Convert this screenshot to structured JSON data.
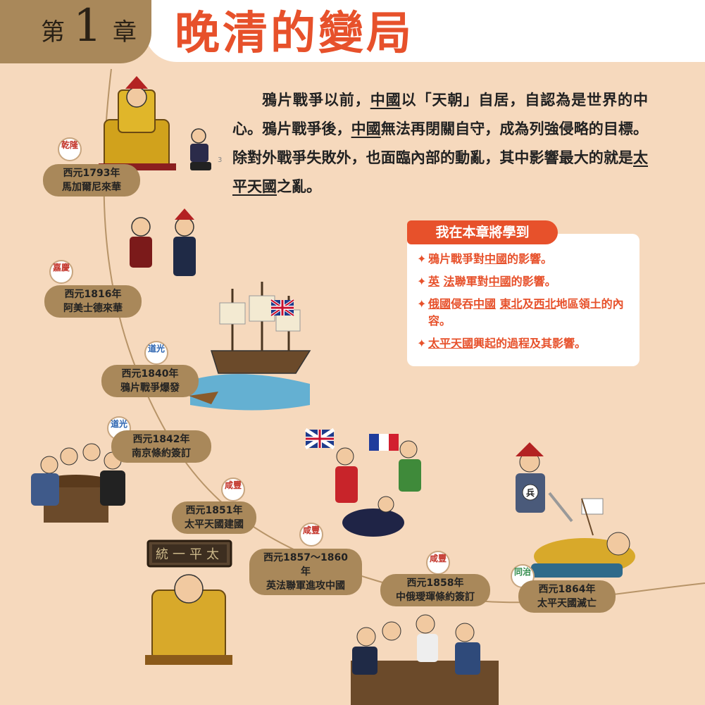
{
  "chapter": {
    "word_before": "第",
    "number": "1",
    "word_after": "章",
    "title": "晚清的變局"
  },
  "intro": {
    "segments": [
      {
        "t": "鴉片戰爭以前，",
        "u": false
      },
      {
        "t": "中國",
        "u": true
      },
      {
        "t": "以「天朝」自居，自認為是世界的中心。鴉片戰爭後，",
        "u": false
      },
      {
        "t": "中國",
        "u": true
      },
      {
        "t": "無法再閉關自守，成為列強侵略的目標。除對外戰爭失敗外，也面臨內部的動亂，其中影響最大的就是",
        "u": false
      },
      {
        "t": "太平天國",
        "u": true
      },
      {
        "t": "之亂。",
        "u": false
      }
    ],
    "footnote_mark": "3"
  },
  "learn": {
    "header": "我在本章將學到",
    "items": [
      {
        "segments": [
          {
            "t": "鴉片戰爭對",
            "u": false
          },
          {
            "t": "中國",
            "u": true
          },
          {
            "t": "的影響。",
            "u": false
          }
        ]
      },
      {
        "segments": [
          {
            "t": "英",
            "u": true
          },
          {
            "t": " ",
            "u": false
          },
          {
            "t": "法",
            "u": true
          },
          {
            "t": "聯軍對",
            "u": false
          },
          {
            "t": "中國",
            "u": true
          },
          {
            "t": "的影響。",
            "u": false
          }
        ]
      },
      {
        "segments": [
          {
            "t": "俄國",
            "u": true
          },
          {
            "t": "侵吞",
            "u": false
          },
          {
            "t": "中國",
            "u": true
          },
          {
            "t": " ",
            "u": false
          },
          {
            "t": "東北",
            "u": true
          },
          {
            "t": "及",
            "u": false
          },
          {
            "t": "西北",
            "u": true
          },
          {
            "t": "地區領土的內容。",
            "u": false
          }
        ]
      },
      {
        "segments": [
          {
            "t": "太平天國",
            "u": true
          },
          {
            "t": "興起的過程及其影響。",
            "u": false
          }
        ]
      }
    ],
    "bullet": "✦"
  },
  "timeline": {
    "eras": [
      {
        "text": "乾隆",
        "color": "red"
      },
      {
        "text": "嘉慶",
        "color": "red"
      },
      {
        "text": "道光",
        "color": "blue"
      },
      {
        "text": "道光",
        "color": "blue"
      },
      {
        "text": "咸豐",
        "color": "red"
      },
      {
        "text": "咸豐",
        "color": "red"
      },
      {
        "text": "咸豐",
        "color": "red"
      },
      {
        "text": "同治",
        "color": "green"
      }
    ],
    "events": [
      {
        "year": "西元1793年",
        "desc": "馬加爾尼來華"
      },
      {
        "year": "西元1816年",
        "desc": "阿美士德來華"
      },
      {
        "year": "西元1840年",
        "desc": "鴉片戰爭爆發"
      },
      {
        "year": "西元1842年",
        "desc": "南京條約簽訂"
      },
      {
        "year": "西元1851年",
        "desc": "太平天國建國"
      },
      {
        "year": "西元1857～1860年",
        "desc": "英法聯軍進攻中國"
      },
      {
        "year": "西元1858年",
        "desc": "中俄璦琿條約簽訂"
      },
      {
        "year": "西元1864年",
        "desc": "太平天國滅亡"
      }
    ],
    "plaque_text": "統一平太",
    "soldier_badge": "兵"
  },
  "colors": {
    "background": "#f6d9bd",
    "accent": "#e7512b",
    "tab": "#a9885a"
  }
}
